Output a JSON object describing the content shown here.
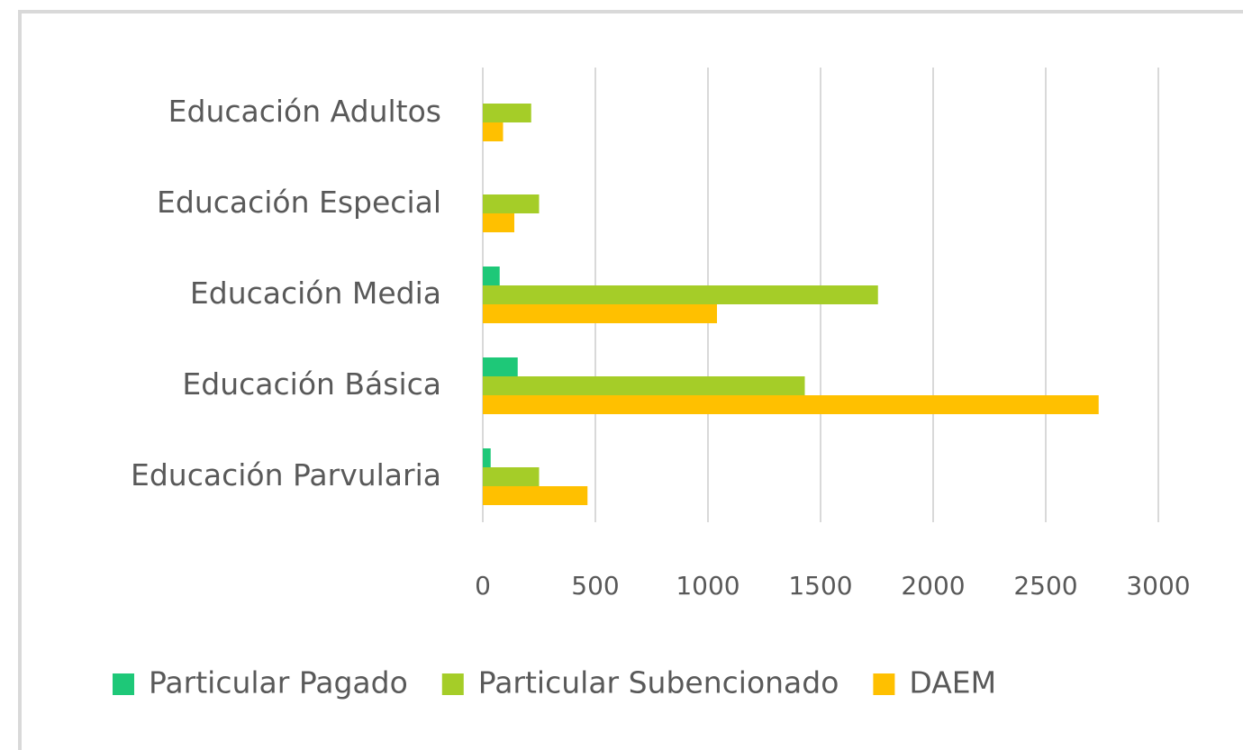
{
  "chart_data": {
    "type": "bar",
    "orientation": "horizontal",
    "categories": [
      "Educación Parvularia",
      "Educación Básica",
      "Educación Media",
      "Educación Especial",
      "Educación Adultos"
    ],
    "series": [
      {
        "name": "Particular Pagado",
        "color": "#1ec878",
        "values": [
          35,
          155,
          75,
          0,
          0
        ]
      },
      {
        "name": "Particular Subencionado",
        "color": "#a5cd28",
        "values": [
          250,
          1430,
          1755,
          250,
          215
        ]
      },
      {
        "name": "DAEM",
        "color": "#ffc000",
        "values": [
          465,
          2735,
          1040,
          140,
          90
        ]
      }
    ],
    "xlim": [
      0,
      3000
    ],
    "xticks": [
      0,
      500,
      1000,
      1500,
      2000,
      2500,
      3000
    ],
    "grid": true,
    "legend": "bottom"
  }
}
